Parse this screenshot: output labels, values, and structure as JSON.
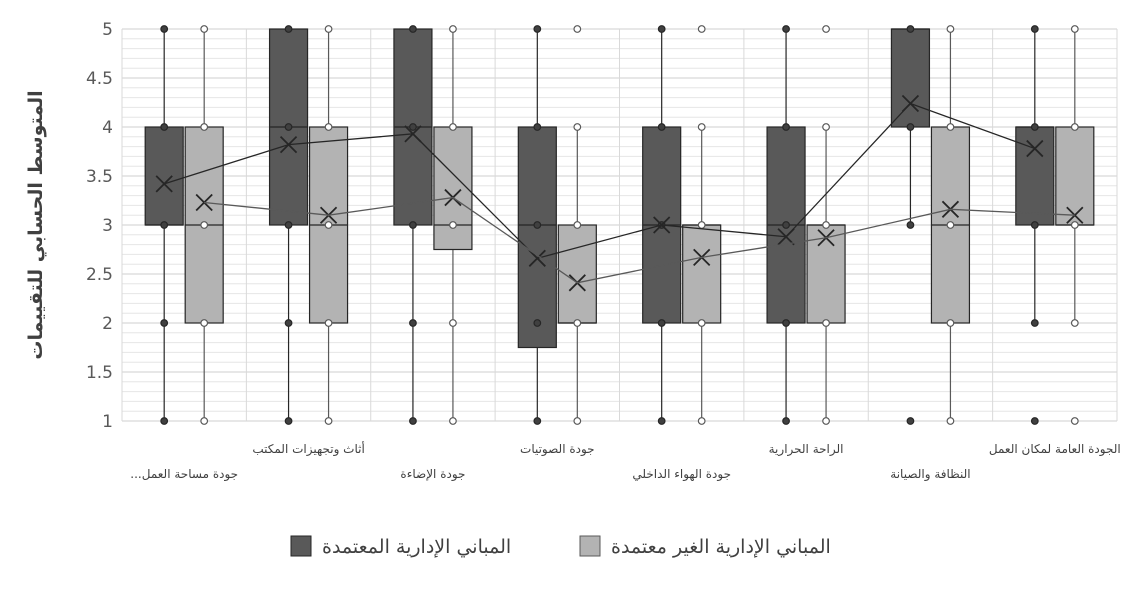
{
  "chart_data": {
    "type": "box",
    "ylabel": "المتوسط الحسابي للتقييمات",
    "ylim": [
      1,
      5
    ],
    "yticks": [
      "1",
      "1.5",
      "2",
      "2.5",
      "3",
      "3.5",
      "4",
      "4.5",
      "5"
    ],
    "grid": true,
    "legend_position": "bottom",
    "categories": [
      "جودة مساحة العمل...",
      "أثاث وتجهيزات المكتب",
      "جودة الإضاءة",
      "جودة الصوتيات",
      "جودة الهواء الداخلي",
      "الراحة الحرارية",
      "النظافة والصيانة",
      "الجودة العامة لمكان العمل"
    ],
    "series": [
      {
        "name": "المباني الإدارية المعتمدة",
        "color": "#595959",
        "boxes": [
          {
            "min": 1,
            "q1": 3,
            "median": 3,
            "q3": 4,
            "max": 5,
            "mean": 3.42,
            "points": [
              1,
              2,
              3,
              4,
              5
            ]
          },
          {
            "min": 1,
            "q1": 3,
            "median": 4,
            "q3": 5,
            "max": 5,
            "mean": 3.82,
            "points": [
              1,
              2,
              3,
              4,
              5
            ]
          },
          {
            "min": 1,
            "q1": 3,
            "median": 4,
            "q3": 5,
            "max": 5,
            "mean": 3.93,
            "points": [
              1,
              2,
              3,
              4,
              5
            ]
          },
          {
            "min": 1,
            "q1": 1.75,
            "median": 3,
            "q3": 4,
            "max": 5,
            "mean": 2.66,
            "points": [
              1,
              2,
              3,
              4,
              5
            ]
          },
          {
            "min": 1,
            "q1": 2,
            "median": 3,
            "q3": 4,
            "max": 5,
            "mean": 3.0,
            "points": [
              1,
              2,
              3,
              4,
              5
            ]
          },
          {
            "min": 1,
            "q1": 2,
            "median": 3,
            "q3": 4,
            "max": 5,
            "mean": 2.88,
            "points": [
              1,
              2,
              3,
              4,
              5
            ]
          },
          {
            "min": 3,
            "q1": 4,
            "median": 5,
            "q3": 5,
            "max": 5,
            "mean": 4.24,
            "points": [
              1,
              3,
              4,
              5
            ]
          },
          {
            "min": 2,
            "q1": 3,
            "median": 4,
            "q3": 4,
            "max": 5,
            "mean": 3.78,
            "points": [
              1,
              2,
              3,
              4,
              5
            ]
          }
        ]
      },
      {
        "name": "المباني الإدارية الغير معتمدة",
        "color": "#b3b3b3",
        "boxes": [
          {
            "min": 1,
            "q1": 2,
            "median": 3,
            "q3": 4,
            "max": 5,
            "mean": 3.23,
            "points": [
              1,
              2,
              3,
              4,
              5
            ]
          },
          {
            "min": 1,
            "q1": 2,
            "median": 3,
            "q3": 4,
            "max": 5,
            "mean": 3.1,
            "points": [
              1,
              2,
              3,
              4,
              5
            ]
          },
          {
            "min": 1,
            "q1": 2.75,
            "median": 3,
            "q3": 4,
            "max": 5,
            "mean": 3.28,
            "points": [
              1,
              2,
              3,
              4,
              5
            ]
          },
          {
            "min": 1,
            "q1": 2,
            "median": 2,
            "q3": 3,
            "max": 4,
            "mean": 2.41,
            "points": [
              1,
              2,
              3,
              4,
              5
            ]
          },
          {
            "min": 1,
            "q1": 2,
            "median": 3,
            "q3": 3,
            "max": 4,
            "mean": 2.67,
            "points": [
              1,
              2,
              3,
              4,
              5
            ]
          },
          {
            "min": 1,
            "q1": 2,
            "median": 3,
            "q3": 3,
            "max": 4,
            "mean": 2.87,
            "points": [
              1,
              2,
              3,
              4,
              5
            ]
          },
          {
            "min": 1,
            "q1": 2,
            "median": 3,
            "q3": 4,
            "max": 5,
            "mean": 3.16,
            "points": [
              1,
              2,
              3,
              4,
              5
            ]
          },
          {
            "min": 2,
            "q1": 3,
            "median": 3,
            "q3": 4,
            "max": 5,
            "mean": 3.1,
            "points": [
              1,
              2,
              3,
              4,
              5
            ]
          }
        ]
      }
    ]
  }
}
